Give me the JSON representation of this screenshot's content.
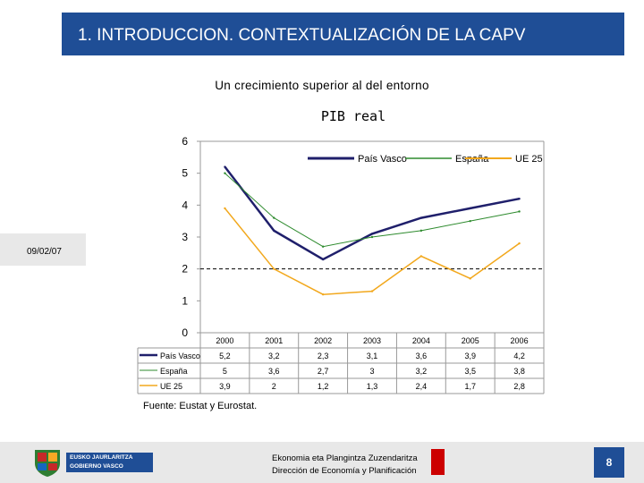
{
  "header": {
    "title": "1. INTRODUCCION. CONTEXTUALIZACIÓN DE LA CAPV"
  },
  "subtitle": "Un crecimiento superior al del entorno",
  "date_label": "09/02/07",
  "source": "Fuente: Eustat y Eurostat.",
  "footer": {
    "logo_line1": "EUSKO JAURLARITZA",
    "logo_line2": "GOBIERNO VASCO",
    "dept_line1": "Ekonomia eta Plangintza Zuzendaritza",
    "dept_line2": "Dirección de Economía y Planificación",
    "page_number": "8"
  },
  "colors": {
    "header_bg": "#1f4e96",
    "pais_vasco": "#1f1f6b",
    "espana": "#2e8b2e",
    "ue25": "#f2a81d",
    "dashed": "#000000"
  },
  "chart_data": {
    "type": "line",
    "title": "PIB real",
    "categories": [
      "2000",
      "2001",
      "2002",
      "2003",
      "2004",
      "2005",
      "2006"
    ],
    "ylim": [
      0,
      6
    ],
    "yticks": [
      0,
      1,
      2,
      3,
      4,
      5,
      6
    ],
    "reference_line": 2,
    "legend_position": "top-right",
    "series": [
      {
        "name": "País Vasco",
        "values": [
          5.2,
          3.2,
          2.3,
          3.1,
          3.6,
          3.9,
          4.2
        ],
        "labels": [
          "5,2",
          "3,2",
          "2,3",
          "3,1",
          "3,6",
          "3,9",
          "4,2"
        ]
      },
      {
        "name": "España",
        "values": [
          5,
          3.6,
          2.7,
          3,
          3.2,
          3.5,
          3.8
        ],
        "labels": [
          "5",
          "3,6",
          "2,7",
          "3",
          "3,2",
          "3,5",
          "3,8"
        ]
      },
      {
        "name": "UE 25",
        "values": [
          3.9,
          2,
          1.2,
          1.3,
          2.4,
          1.7,
          2.8
        ],
        "labels": [
          "3,9",
          "2",
          "1,2",
          "1,3",
          "2,4",
          "1,7",
          "2,8"
        ]
      }
    ],
    "legend_labels": [
      "País Vasco",
      "España",
      "UE 25"
    ],
    "table_labels": [
      "País Vasco",
      "España",
      "UE 25"
    ]
  }
}
